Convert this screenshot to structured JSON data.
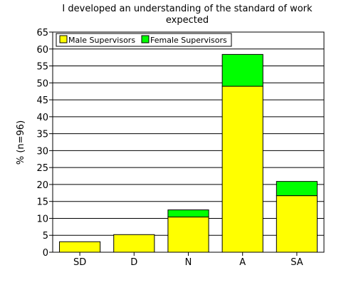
{
  "chart_data": {
    "type": "bar",
    "stacked": true,
    "title": "I developed an understanding of the standard of work expected",
    "title_lines": [
      "I developed an understanding of the standard of work",
      "expected"
    ],
    "xlabel": "",
    "ylabel": "% (n=96)",
    "ylim": [
      0,
      65
    ],
    "yticks": [
      0,
      5,
      10,
      15,
      20,
      25,
      30,
      35,
      40,
      45,
      50,
      55,
      60,
      65
    ],
    "grid": true,
    "legend_position": "top-left",
    "categories": [
      "SD",
      "D",
      "N",
      "A",
      "SA"
    ],
    "series": [
      {
        "name": "Male Supervisors",
        "color": "#ffff00",
        "values": [
          3.1,
          5.2,
          10.4,
          49.0,
          16.7
        ]
      },
      {
        "name": "Female Supervisors",
        "color": "#00ff00",
        "values": [
          0,
          0,
          2.1,
          9.4,
          4.2
        ]
      }
    ]
  }
}
